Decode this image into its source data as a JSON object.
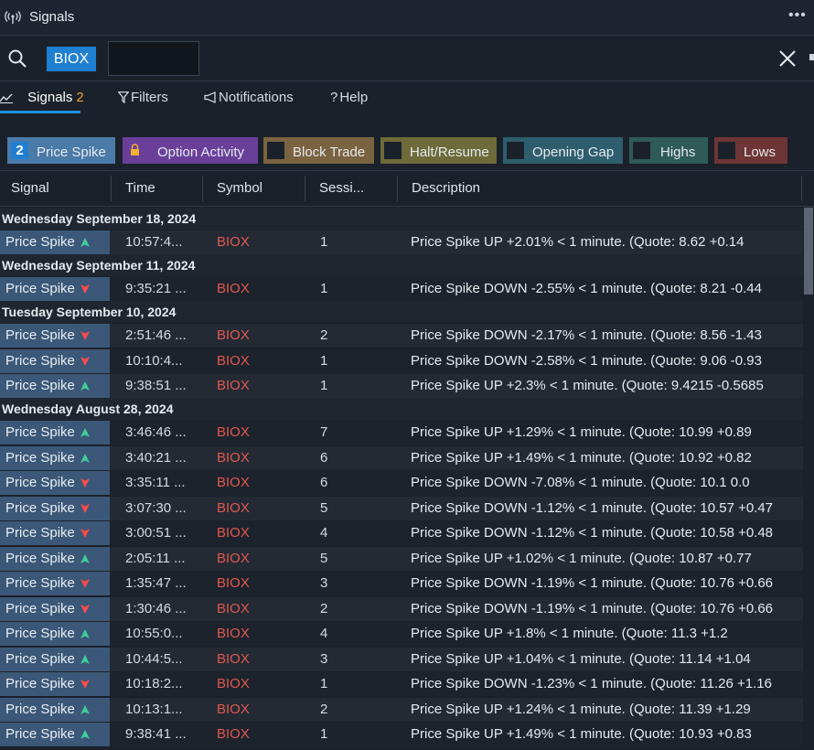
{
  "window": {
    "title": "Signals"
  },
  "search": {
    "symbol_chip": "BIOX",
    "input_value": ""
  },
  "tabs": [
    {
      "label": "Signals",
      "count": "2"
    },
    {
      "label": "Filters"
    },
    {
      "label": "Notifications"
    },
    {
      "label": "Help"
    }
  ],
  "filters": [
    {
      "label": "Price Spike",
      "count": "2",
      "color": "#4a7aa8"
    },
    {
      "label": "Option Activity",
      "color": "#6a3f9a",
      "locked": true
    },
    {
      "label": "Block Trade",
      "color": "#7a6340"
    },
    {
      "label": "Halt/Resume",
      "color": "#6e6a3a"
    },
    {
      "label": "Opening Gap",
      "color": "#2e5e6e"
    },
    {
      "label": "Highs",
      "color": "#2e5a58"
    },
    {
      "label": "Lows",
      "color": "#6e3536"
    }
  ],
  "columns": [
    "Signal",
    "Time",
    "Symbol",
    "Sessi...",
    "Description"
  ],
  "groups": [
    {
      "date": "Wednesday September 18, 2024",
      "rows": [
        {
          "signal": "Price Spike",
          "dir": "up",
          "time": "10:57:4...",
          "symbol": "BIOX",
          "session": "1",
          "description": "Price Spike UP +2.01% < 1 minute. (Quote: 8.62 +0.14"
        }
      ]
    },
    {
      "date": "Wednesday September 11, 2024",
      "rows": [
        {
          "signal": "Price Spike",
          "dir": "down",
          "time": "9:35:21 ...",
          "symbol": "BIOX",
          "session": "1",
          "description": "Price Spike DOWN -2.55% < 1 minute. (Quote: 8.21 -0.44"
        }
      ]
    },
    {
      "date": "Tuesday September 10, 2024",
      "rows": [
        {
          "signal": "Price Spike",
          "dir": "down",
          "time": "2:51:46 ...",
          "symbol": "BIOX",
          "session": "2",
          "description": "Price Spike DOWN -2.17% < 1 minute. (Quote: 8.56 -1.43"
        },
        {
          "signal": "Price Spike",
          "dir": "down",
          "time": "10:10:4...",
          "symbol": "BIOX",
          "session": "1",
          "description": "Price Spike DOWN -2.58% < 1 minute. (Quote: 9.06 -0.93"
        },
        {
          "signal": "Price Spike",
          "dir": "up",
          "time": "9:38:51 ...",
          "symbol": "BIOX",
          "session": "1",
          "description": "Price Spike UP +2.3% < 1 minute. (Quote: 9.4215 -0.5685"
        }
      ]
    },
    {
      "date": "Wednesday August 28, 2024",
      "rows": [
        {
          "signal": "Price Spike",
          "dir": "up",
          "time": "3:46:46 ...",
          "symbol": "BIOX",
          "session": "7",
          "description": "Price Spike UP +1.29% < 1 minute. (Quote: 10.99 +0.89"
        },
        {
          "signal": "Price Spike",
          "dir": "up",
          "time": "3:40:21 ...",
          "symbol": "BIOX",
          "session": "6",
          "description": "Price Spike UP +1.49% < 1 minute. (Quote: 10.92 +0.82"
        },
        {
          "signal": "Price Spike",
          "dir": "down",
          "time": "3:35:11 ...",
          "symbol": "BIOX",
          "session": "6",
          "description": "Price Spike DOWN -7.08% < 1 minute. (Quote: 10.1 0.0"
        },
        {
          "signal": "Price Spike",
          "dir": "down",
          "time": "3:07:30 ...",
          "symbol": "BIOX",
          "session": "5",
          "description": "Price Spike DOWN -1.12% < 1 minute. (Quote: 10.57 +0.47"
        },
        {
          "signal": "Price Spike",
          "dir": "down",
          "time": "3:00:51 ...",
          "symbol": "BIOX",
          "session": "4",
          "description": "Price Spike DOWN -1.12% < 1 minute. (Quote: 10.58 +0.48"
        },
        {
          "signal": "Price Spike",
          "dir": "up",
          "time": "2:05:11 ...",
          "symbol": "BIOX",
          "session": "5",
          "description": "Price Spike UP +1.02% < 1 minute. (Quote: 10.87 +0.77"
        },
        {
          "signal": "Price Spike",
          "dir": "down",
          "time": "1:35:47 ...",
          "symbol": "BIOX",
          "session": "3",
          "description": "Price Spike DOWN -1.19% < 1 minute. (Quote: 10.76 +0.66"
        },
        {
          "signal": "Price Spike",
          "dir": "down",
          "time": "1:30:46 ...",
          "symbol": "BIOX",
          "session": "2",
          "description": "Price Spike DOWN -1.19% < 1 minute. (Quote: 10.76 +0.66"
        },
        {
          "signal": "Price Spike",
          "dir": "up",
          "time": "10:55:0...",
          "symbol": "BIOX",
          "session": "4",
          "description": "Price Spike UP +1.8% < 1 minute. (Quote: 11.3 +1.2"
        },
        {
          "signal": "Price Spike",
          "dir": "up",
          "time": "10:44:5...",
          "symbol": "BIOX",
          "session": "3",
          "description": "Price Spike UP +1.04% < 1 minute. (Quote: 11.14 +1.04"
        },
        {
          "signal": "Price Spike",
          "dir": "down",
          "time": "10:18:2...",
          "symbol": "BIOX",
          "session": "1",
          "description": "Price Spike DOWN -1.23% < 1 minute. (Quote: 11.26 +1.16"
        },
        {
          "signal": "Price Spike",
          "dir": "up",
          "time": "10:13:1...",
          "symbol": "BIOX",
          "session": "2",
          "description": "Price Spike UP +1.24% < 1 minute. (Quote: 11.39 +1.29"
        },
        {
          "signal": "Price Spike",
          "dir": "up",
          "time": "9:38:41 ...",
          "symbol": "BIOX",
          "session": "1",
          "description": "Price Spike UP +1.49% < 1 minute. (Quote: 10.93 +0.83"
        }
      ]
    }
  ],
  "colors": {
    "up_arrow": "#3fcf9a",
    "down_arrow": "#ff4a4a",
    "symbol": "#e0584e",
    "accent": "#1f8fe0"
  }
}
